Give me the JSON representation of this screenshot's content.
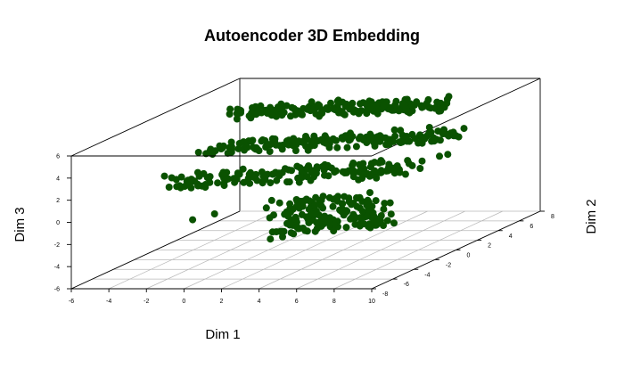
{
  "chart_data": {
    "type": "scatter",
    "title": "Autoencoder 3D Embedding",
    "xlabel": "Dim 1",
    "ylabel": "Dim 2",
    "zlabel": "Dim 3",
    "xlim": [
      -6,
      10
    ],
    "ylim": [
      -8,
      8
    ],
    "zlim": [
      -6,
      6
    ],
    "x_ticks": [
      "-6",
      "-4",
      "-2",
      "0",
      "2",
      "4",
      "6",
      "8",
      "10"
    ],
    "y_ticks": [
      "-8",
      "-6",
      "-4",
      "-2",
      "0",
      "2",
      "4",
      "6",
      "8"
    ],
    "z_ticks": [
      "-6",
      "-4",
      "-2",
      "0",
      "2",
      "4",
      "6"
    ],
    "grid": true,
    "box": true,
    "point_color": "#0a5200",
    "clusters": [
      {
        "x": [
          -4,
          6
        ],
        "y": [
          3,
          6
        ],
        "z": [
          4.2,
          5.2
        ]
      },
      {
        "x": [
          -3,
          8
        ],
        "y": [
          -2,
          4
        ],
        "z": [
          2.6,
          3.6
        ]
      },
      {
        "x": [
          -3,
          8
        ],
        "y": [
          -6,
          0
        ],
        "z": [
          1.2,
          2.4
        ]
      },
      {
        "x": [
          3,
          8
        ],
        "y": [
          -6,
          -3
        ],
        "z": [
          -2.5,
          0.5
        ]
      }
    ]
  }
}
